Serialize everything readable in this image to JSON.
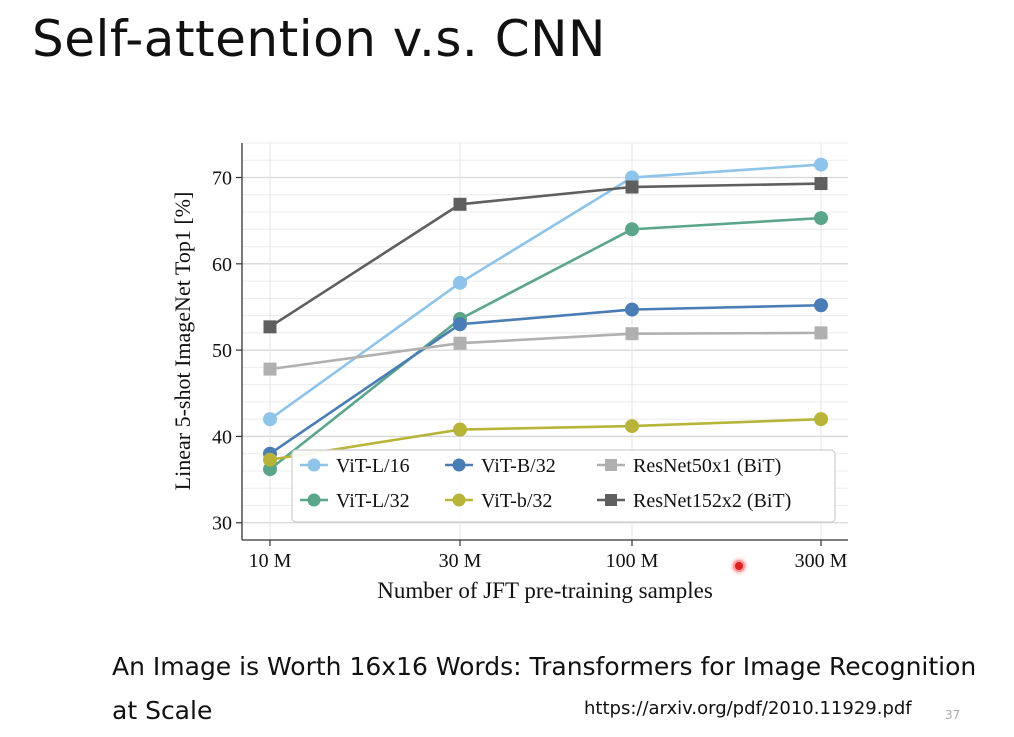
{
  "slide": {
    "title": "Self-attention v.s. CNN",
    "caption": "An Image is Worth 16x16 Words: Transformers for Image Recognition at Scale",
    "url": "https://arxiv.org/pdf/2010.11929.pdf",
    "page_number": "37"
  },
  "chart_data": {
    "type": "line",
    "title": "",
    "xlabel": "Number of JFT pre-training samples",
    "ylabel": "Linear 5-shot ImageNet Top1 [%]",
    "x_scale": "log",
    "categories": [
      "10 M",
      "30 M",
      "100 M",
      "300 M"
    ],
    "ylim": [
      28,
      74
    ],
    "yticks": [
      30,
      40,
      50,
      60,
      70
    ],
    "grid": true,
    "legend_position": "lower-center",
    "series": [
      {
        "name": "ViT-L/16",
        "color": "#8ec3ea",
        "marker": "circle",
        "values": [
          42,
          57.8,
          70,
          71.5
        ]
      },
      {
        "name": "ViT-L/32",
        "color": "#5ba68a",
        "marker": "circle",
        "values": [
          36.2,
          53.6,
          64,
          65.3
        ]
      },
      {
        "name": "ViT-B/32",
        "color": "#4a7db5",
        "marker": "circle",
        "values": [
          38,
          53,
          54.7,
          55.2
        ]
      },
      {
        "name": "ViT-b/32",
        "color": "#b8b43a",
        "marker": "circle",
        "values": [
          37.3,
          40.8,
          41.2,
          42
        ]
      },
      {
        "name": "ResNet50x1 (BiT)",
        "color": "#b0b0b0",
        "marker": "square",
        "values": [
          47.8,
          50.8,
          51.9,
          52
        ]
      },
      {
        "name": "ResNet152x2 (BiT)",
        "color": "#5f5f5f",
        "marker": "square",
        "values": [
          52.7,
          66.9,
          68.9,
          69.3
        ]
      }
    ],
    "legend_order": [
      "ViT-L/16",
      "ViT-B/32",
      "ResNet50x1 (BiT)",
      "ViT-L/32",
      "ViT-b/32",
      "ResNet152x2 (BiT)"
    ]
  }
}
